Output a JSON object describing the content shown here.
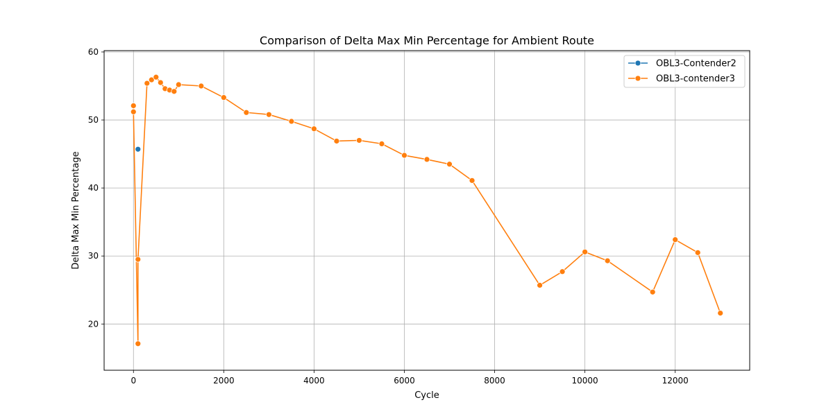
{
  "chart_data": {
    "type": "line",
    "title": "Comparison of Delta Max Min Percentage for Ambient Route",
    "xlabel": "Cycle",
    "ylabel": "Delta Max Min Percentage",
    "xlim": [
      -650,
      13650
    ],
    "ylim": [
      13.2,
      60.2
    ],
    "xticks": [
      0,
      2000,
      4000,
      6000,
      8000,
      10000,
      12000
    ],
    "yticks": [
      20,
      30,
      40,
      50,
      60
    ],
    "xtick_labels": [
      "0",
      "2000",
      "4000",
      "6000",
      "8000",
      "10000",
      "12000"
    ],
    "ytick_labels": [
      "20",
      "30",
      "40",
      "50",
      "60"
    ],
    "grid": true,
    "legend_position": "top-right",
    "series": [
      {
        "name": "OBL3-Contender2",
        "color": "#1f77b4",
        "marker": "circle",
        "x": [
          100
        ],
        "y": [
          45.7
        ]
      },
      {
        "name": "OBL3-contender3",
        "color": "#ff7f0e",
        "marker": "circle",
        "x": [
          0,
          0,
          100,
          100,
          300,
          400,
          500,
          600,
          700,
          800,
          900,
          1000,
          1500,
          2000,
          2500,
          3000,
          3500,
          4000,
          4500,
          5000,
          5500,
          6000,
          6500,
          7000,
          7500,
          9000,
          9500,
          10000,
          10500,
          11500,
          12000,
          12500,
          13000
        ],
        "y": [
          52.1,
          51.2,
          17.1,
          29.5,
          55.4,
          55.9,
          56.3,
          55.5,
          54.6,
          54.4,
          54.2,
          55.2,
          55.0,
          53.3,
          51.1,
          50.8,
          49.8,
          48.7,
          46.9,
          47.0,
          46.5,
          44.8,
          44.2,
          43.5,
          41.1,
          25.7,
          27.7,
          30.6,
          29.3,
          24.7,
          32.4,
          30.5,
          21.6
        ]
      }
    ]
  }
}
